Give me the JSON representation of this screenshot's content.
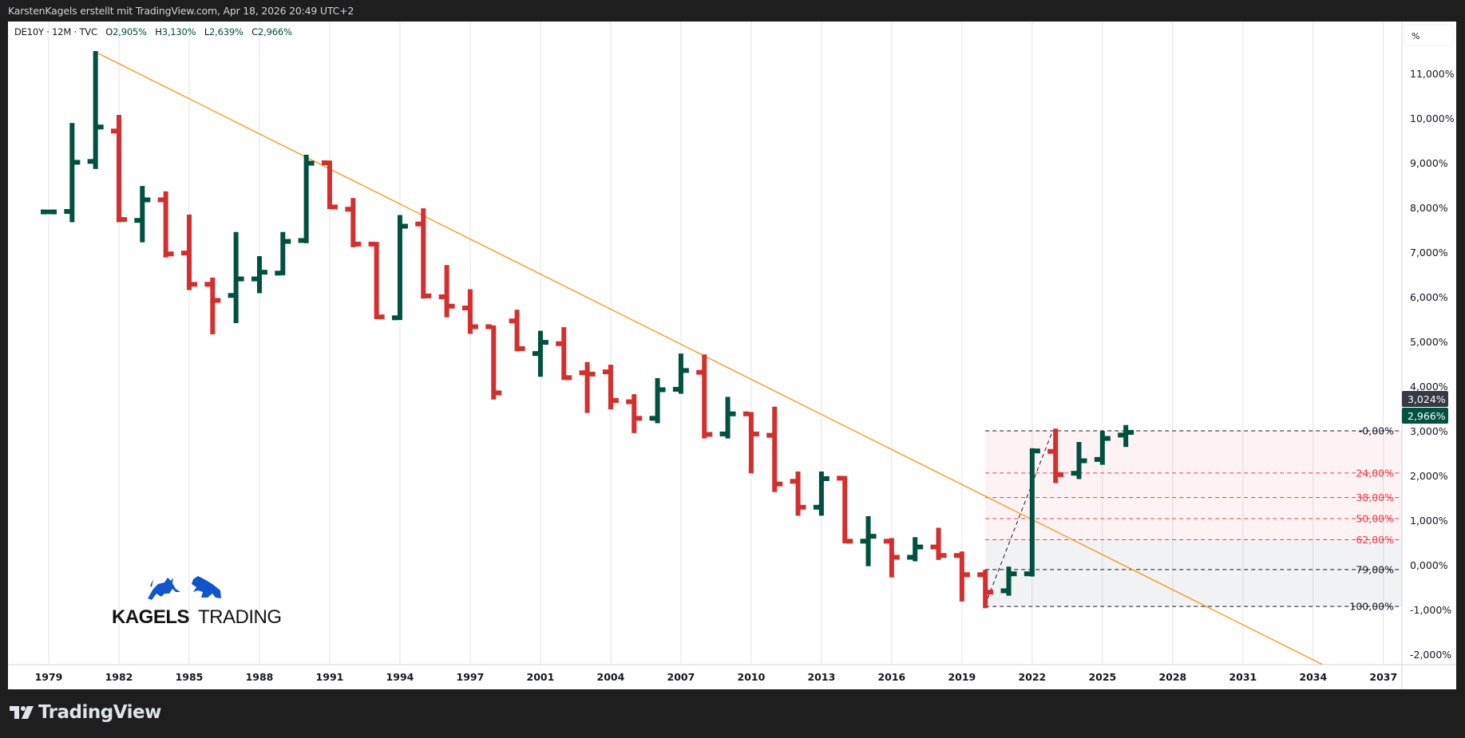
{
  "header": {
    "attribution": "KarstenKagels erstellt mit TradingView.com, Apr 18, 2026 20:49 UTC+2"
  },
  "legend": {
    "symbol": "DE10Y · 12M · TVC",
    "open_label": "O",
    "open": "2,905%",
    "high_label": "H",
    "high": "3,130%",
    "low_label": "L",
    "low": "2,639%",
    "close_label": "C",
    "close": "2,966%"
  },
  "price_axis": {
    "unit_button": "%",
    "last_price_label": "3,024%",
    "close_price_label": "2,966%"
  },
  "footer": {
    "brand": "TradingView"
  },
  "watermark": {
    "word1": "KAGELS",
    "word2": "TRADING"
  },
  "colors": {
    "up": "#00513f",
    "down": "#d32f2f",
    "trendline": "#f7931a",
    "fib_red": "#f23645",
    "fib_dark": "#131722",
    "logo_blue": "#1155cc"
  },
  "chart_data": {
    "type": "ohlc",
    "title": "DE10Y · 12M · TVC",
    "ylabel": "%",
    "ylim": [
      -2.2,
      11.6
    ],
    "y_ticks": [
      "11,000%",
      "10,000%",
      "9,000%",
      "8,000%",
      "7,000%",
      "6,000%",
      "5,000%",
      "4,000%",
      "3,000%",
      "2,000%",
      "1,000%",
      "0,000%",
      "-1,000%",
      "-2,000%"
    ],
    "y_tick_values": [
      11,
      10,
      9,
      8,
      7,
      6,
      5,
      4,
      3,
      2,
      1,
      0,
      -1,
      -2
    ],
    "x_ticks": [
      {
        "label": "1979",
        "bar_index": 0
      },
      {
        "label": "1982",
        "bar_index": 3
      },
      {
        "label": "1985",
        "bar_index": 6
      },
      {
        "label": "1988",
        "bar_index": 9
      },
      {
        "label": "1991",
        "bar_index": 12
      },
      {
        "label": "1994",
        "bar_index": 15
      },
      {
        "label": "1997",
        "bar_index": 18
      },
      {
        "label": "2001",
        "bar_index": 21
      },
      {
        "label": "2004",
        "bar_index": 24
      },
      {
        "label": "2007",
        "bar_index": 27
      },
      {
        "label": "2010",
        "bar_index": 30
      },
      {
        "label": "2013",
        "bar_index": 33
      },
      {
        "label": "2016",
        "bar_index": 36
      },
      {
        "label": "2019",
        "bar_index": 39
      },
      {
        "label": "2022",
        "bar_index": 42
      },
      {
        "label": "2025",
        "bar_index": 45
      },
      {
        "label": "2028",
        "bar_index": 48
      },
      {
        "label": "2031",
        "bar_index": 51
      },
      {
        "label": "2034",
        "bar_index": 54
      },
      {
        "label": "2037",
        "bar_index": 57
      }
    ],
    "bars": [
      {
        "year": 1979,
        "o": 7.9,
        "h": 7.95,
        "l": 7.85,
        "c": 7.9
      },
      {
        "year": 1980,
        "o": 7.91,
        "h": 9.89,
        "l": 7.67,
        "c": 9.01
      },
      {
        "year": 1981,
        "o": 9.03,
        "h": 11.5,
        "l": 8.86,
        "c": 9.8
      },
      {
        "year": 1982,
        "o": 9.71,
        "h": 10.07,
        "l": 7.67,
        "c": 7.73
      },
      {
        "year": 1983,
        "o": 7.71,
        "h": 8.48,
        "l": 7.22,
        "c": 8.17
      },
      {
        "year": 1984,
        "o": 8.17,
        "h": 8.36,
        "l": 6.88,
        "c": 6.96
      },
      {
        "year": 1985,
        "o": 6.98,
        "h": 7.84,
        "l": 6.15,
        "c": 6.28
      },
      {
        "year": 1986,
        "o": 6.28,
        "h": 6.43,
        "l": 5.16,
        "c": 5.92
      },
      {
        "year": 1987,
        "o": 6.03,
        "h": 7.45,
        "l": 5.41,
        "c": 6.4
      },
      {
        "year": 1988,
        "o": 6.4,
        "h": 6.91,
        "l": 6.08,
        "c": 6.55
      },
      {
        "year": 1989,
        "o": 6.53,
        "h": 7.45,
        "l": 6.48,
        "c": 7.24
      },
      {
        "year": 1990,
        "o": 7.26,
        "h": 9.18,
        "l": 7.2,
        "c": 8.99
      },
      {
        "year": 1991,
        "o": 9.0,
        "h": 9.05,
        "l": 7.96,
        "c": 8.01
      },
      {
        "year": 1992,
        "o": 7.96,
        "h": 8.21,
        "l": 7.11,
        "c": 7.18
      },
      {
        "year": 1993,
        "o": 7.18,
        "h": 7.23,
        "l": 5.5,
        "c": 5.55
      },
      {
        "year": 1994,
        "o": 5.53,
        "h": 7.83,
        "l": 5.48,
        "c": 7.58
      },
      {
        "year": 1995,
        "o": 7.63,
        "h": 7.98,
        "l": 5.96,
        "c": 6.02
      },
      {
        "year": 1996,
        "o": 6.0,
        "h": 6.71,
        "l": 5.54,
        "c": 5.79
      },
      {
        "year": 1997,
        "o": 5.75,
        "h": 6.17,
        "l": 5.17,
        "c": 5.33
      },
      {
        "year": 1998,
        "o": 5.33,
        "h": 5.36,
        "l": 3.7,
        "c": 3.85
      },
      {
        "year": 2000,
        "o": 5.46,
        "h": 5.71,
        "l": 4.78,
        "c": 4.84
      },
      {
        "year": 2001,
        "o": 4.73,
        "h": 5.24,
        "l": 4.21,
        "c": 4.98
      },
      {
        "year": 2002,
        "o": 4.95,
        "h": 5.32,
        "l": 4.14,
        "c": 4.19
      },
      {
        "year": 2003,
        "o": 4.3,
        "h": 4.54,
        "l": 3.4,
        "c": 4.27
      },
      {
        "year": 2004,
        "o": 4.32,
        "h": 4.48,
        "l": 3.48,
        "c": 3.68
      },
      {
        "year": 2005,
        "o": 3.65,
        "h": 3.82,
        "l": 2.95,
        "c": 3.28
      },
      {
        "year": 2006,
        "o": 3.28,
        "h": 4.18,
        "l": 3.17,
        "c": 3.92
      },
      {
        "year": 2007,
        "o": 3.93,
        "h": 4.73,
        "l": 3.83,
        "c": 4.35
      },
      {
        "year": 2008,
        "o": 4.31,
        "h": 4.71,
        "l": 2.83,
        "c": 2.92
      },
      {
        "year": 2009,
        "o": 2.93,
        "h": 3.76,
        "l": 2.83,
        "c": 3.38
      },
      {
        "year": 2010,
        "o": 3.38,
        "h": 3.42,
        "l": 2.05,
        "c": 2.93
      },
      {
        "year": 2011,
        "o": 2.9,
        "h": 3.54,
        "l": 1.63,
        "c": 1.81
      },
      {
        "year": 2012,
        "o": 1.87,
        "h": 2.09,
        "l": 1.1,
        "c": 1.29
      },
      {
        "year": 2013,
        "o": 1.29,
        "h": 2.09,
        "l": 1.1,
        "c": 1.93
      },
      {
        "year": 2014,
        "o": 1.94,
        "h": 1.99,
        "l": 0.48,
        "c": 0.53
      },
      {
        "year": 2015,
        "o": 0.53,
        "h": 1.09,
        "l": -0.03,
        "c": 0.64
      },
      {
        "year": 2016,
        "o": 0.53,
        "h": 0.6,
        "l": -0.28,
        "c": 0.17
      },
      {
        "year": 2017,
        "o": 0.17,
        "h": 0.62,
        "l": 0.08,
        "c": 0.4
      },
      {
        "year": 2018,
        "o": 0.4,
        "h": 0.83,
        "l": 0.11,
        "c": 0.21
      },
      {
        "year": 2019,
        "o": 0.21,
        "h": 0.3,
        "l": -0.82,
        "c": -0.22
      },
      {
        "year": 2020,
        "o": -0.22,
        "h": -0.11,
        "l": -0.97,
        "c": -0.61
      },
      {
        "year": 2021,
        "o": -0.58,
        "h": -0.04,
        "l": -0.69,
        "c": -0.2
      },
      {
        "year": 2022,
        "o": -0.2,
        "h": 2.61,
        "l": -0.26,
        "c": 2.55
      },
      {
        "year": 2023,
        "o": 2.54,
        "h": 3.05,
        "l": 1.83,
        "c": 2.02
      },
      {
        "year": 2024,
        "o": 2.05,
        "h": 2.75,
        "l": 1.92,
        "c": 2.33
      },
      {
        "year": 2025,
        "o": 2.36,
        "h": 2.99,
        "l": 2.24,
        "c": 2.83
      },
      {
        "year": 2026,
        "o": 2.905,
        "h": 3.13,
        "l": 2.639,
        "c": 2.966
      }
    ],
    "trendline": {
      "from": {
        "bar_index": 2.11,
        "price": 11.45
      },
      "to": {
        "bar_index": 54.4,
        "price": -2.23
      }
    },
    "fib_trend": {
      "from": {
        "bar_index": 40.1,
        "price": -0.75
      },
      "to": {
        "bar_index": 42.85,
        "price": 2.97
      }
    },
    "fib_retracement": {
      "start_bar_index": 40,
      "high": 3.0,
      "low": -0.93,
      "levels": [
        {
          "ratio": 0.0,
          "label": "-0,00%",
          "tone": "dark"
        },
        {
          "ratio": 0.24,
          "label": "24,00%",
          "tone": "red"
        },
        {
          "ratio": 0.38,
          "label": "38,00%",
          "tone": "red"
        },
        {
          "ratio": 0.5,
          "label": "50,00%",
          "tone": "red"
        },
        {
          "ratio": 0.62,
          "label": "62,00%",
          "tone": "red"
        },
        {
          "ratio": 0.79,
          "label": "79,00%",
          "tone": "dark"
        },
        {
          "ratio": 1.0,
          "label": "100,00%",
          "tone": "dark"
        }
      ]
    }
  }
}
